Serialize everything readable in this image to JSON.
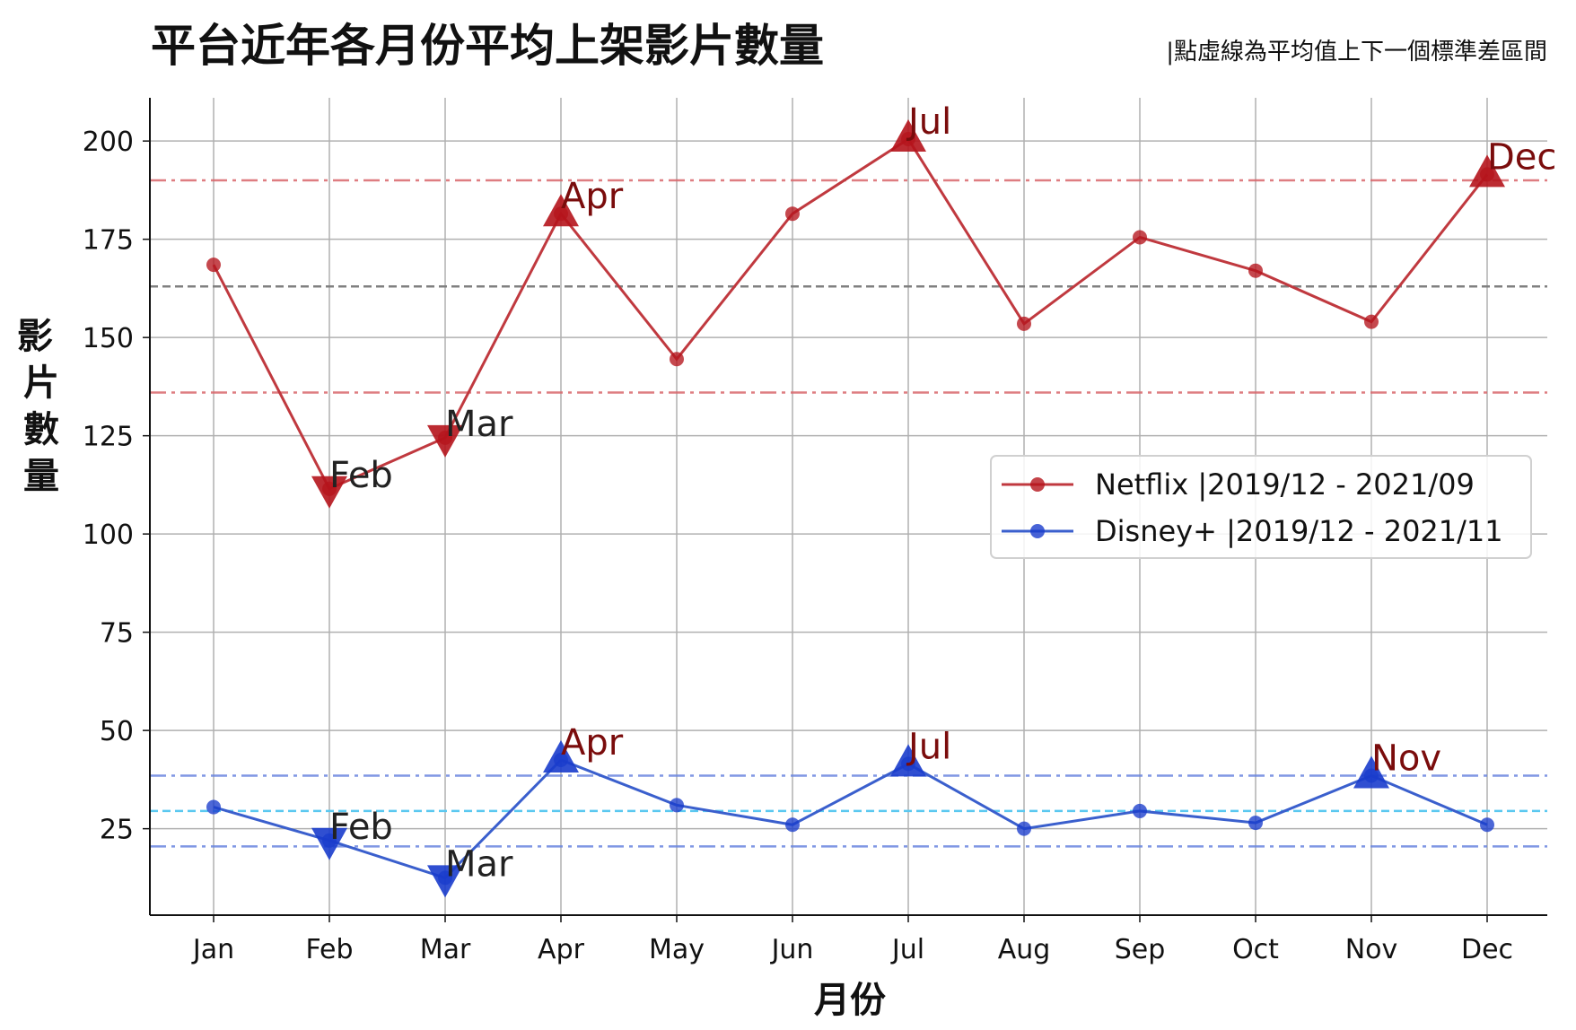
{
  "chart_data": {
    "type": "line",
    "title": "平台近年各月份平均上架影片數量",
    "subtitle": "|點虛線為平均值上下一個標準差區間",
    "xlabel": "月份",
    "ylabel": "影片數量",
    "categories": [
      "Jan",
      "Feb",
      "Mar",
      "Apr",
      "May",
      "Jun",
      "Jul",
      "Aug",
      "Sep",
      "Oct",
      "Nov",
      "Dec"
    ],
    "ylim": [
      3,
      211
    ],
    "yticks": [
      25,
      50,
      75,
      100,
      125,
      150,
      175,
      200
    ],
    "grid": true,
    "legend_position": "center-right",
    "series": [
      {
        "name": "Netflix    |2019/12 - 2021/09",
        "color": "#c0393f",
        "marker_color": "#b5141c",
        "values": [
          168.5,
          111.5,
          124.5,
          181.5,
          144.5,
          181.5,
          200.5,
          153.5,
          175.5,
          167,
          154,
          191.5
        ],
        "mean": 163,
        "band": [
          136,
          190
        ],
        "band_color": "#d9676c",
        "mean_color": "#808080",
        "highs": [
          {
            "label": "Apr",
            "index": 3
          },
          {
            "label": "Jul",
            "index": 6
          },
          {
            "label": "Dec",
            "index": 11
          }
        ],
        "lows": [
          {
            "label": "Feb",
            "index": 1
          },
          {
            "label": "Mar",
            "index": 2
          }
        ]
      },
      {
        "name": "Disney+ |2019/12 - 2021/11",
        "color": "#3a5fcd",
        "marker_color": "#1a3ccc",
        "values": [
          30.5,
          22,
          12.5,
          42.5,
          31,
          26,
          41.5,
          25,
          29.5,
          26.5,
          38.5,
          26
        ],
        "mean": 29.5,
        "band": [
          20.5,
          38.5
        ],
        "band_color": "#6a86e0",
        "mean_color": "#5ac8f0",
        "highs": [
          {
            "label": "Apr",
            "index": 3
          },
          {
            "label": "Jul",
            "index": 6
          },
          {
            "label": "Nov",
            "index": 10
          }
        ],
        "lows": [
          {
            "label": "Feb",
            "index": 1
          },
          {
            "label": "Mar",
            "index": 2
          }
        ]
      }
    ]
  }
}
